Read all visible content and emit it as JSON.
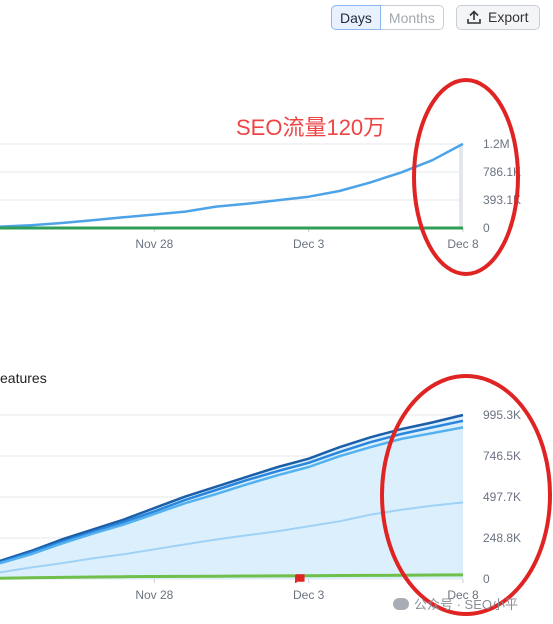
{
  "toolbar": {
    "days_label": "Days",
    "months_label": "Months",
    "export_label": "Export"
  },
  "annotation": {
    "text": "SEO流量120万",
    "color": "#ef4444"
  },
  "colors": {
    "line_blue": "#4da3e8",
    "line_green": "#2e9e58",
    "grid": "#e5e7eb",
    "area_fill": "#d7eefc",
    "dark_blue": "#1b5fa8",
    "mid_blue": "#2a86dd",
    "light_blue": "#9fd2f6",
    "green": "#6fbf4a",
    "marker": "#e02424"
  },
  "watermark": {
    "text": "公众号 · SEO小平"
  },
  "chart_data": [
    {
      "type": "line",
      "title": "",
      "x_ticks": [
        "Nov 28",
        "Dec 3",
        "Dec 8"
      ],
      "y_ticks": [
        "1.2M",
        "786.1K",
        "393.1K",
        "0"
      ],
      "ylim": [
        0,
        1179000
      ],
      "grid": true,
      "x": [
        "Nov 23",
        "Nov 24",
        "Nov 25",
        "Nov 26",
        "Nov 27",
        "Nov 28",
        "Nov 29",
        "Nov 30",
        "Dec 1",
        "Dec 2",
        "Dec 3",
        "Dec 4",
        "Dec 5",
        "Dec 6",
        "Dec 7",
        "Dec 8"
      ],
      "series": [
        {
          "values": [
            20000,
            40000,
            70000,
            110000,
            150000,
            190000,
            230000,
            300000,
            340000,
            390000,
            440000,
            520000,
            640000,
            780000,
            950000,
            1180000
          ]
        },
        {
          "values": [
            0,
            0,
            0,
            0,
            0,
            0,
            0,
            0,
            0,
            0,
            0,
            0,
            0,
            0,
            0,
            0
          ]
        }
      ]
    },
    {
      "type": "area",
      "title": "eatures",
      "x_ticks": [
        "Nov 28",
        "Dec 3",
        "Dec 8"
      ],
      "y_ticks": [
        "995.3K",
        "746.5K",
        "497.7K",
        "248.8K",
        "0"
      ],
      "ylim": [
        0,
        995300
      ],
      "grid": true,
      "x": [
        "Nov 23",
        "Nov 24",
        "Nov 25",
        "Nov 26",
        "Nov 27",
        "Nov 28",
        "Nov 29",
        "Nov 30",
        "Dec 1",
        "Dec 2",
        "Dec 3",
        "Dec 4",
        "Dec 5",
        "Dec 6",
        "Dec 7",
        "Dec 8"
      ],
      "series": [
        {
          "values": [
            110000,
            170000,
            240000,
            300000,
            360000,
            430000,
            500000,
            560000,
            620000,
            680000,
            730000,
            800000,
            860000,
            910000,
            950000,
            995300
          ]
        },
        {
          "values": [
            100000,
            160000,
            225000,
            285000,
            345000,
            410000,
            480000,
            540000,
            600000,
            655000,
            705000,
            770000,
            830000,
            880000,
            920000,
            960000
          ]
        },
        {
          "values": [
            95000,
            150000,
            215000,
            275000,
            330000,
            395000,
            460000,
            515000,
            575000,
            630000,
            680000,
            745000,
            800000,
            850000,
            885000,
            920000
          ]
        },
        {
          "values": [
            40000,
            70000,
            95000,
            125000,
            150000,
            180000,
            210000,
            240000,
            265000,
            290000,
            320000,
            350000,
            390000,
            420000,
            445000,
            465000
          ]
        },
        {
          "values": [
            5000,
            8000,
            10000,
            12000,
            14000,
            15000,
            16000,
            17000,
            18000,
            19000,
            20000,
            21000,
            22000,
            23000,
            24000,
            25000
          ]
        }
      ],
      "annotations": [
        {
          "type": "flag",
          "x": "Dec 2"
        }
      ]
    }
  ]
}
